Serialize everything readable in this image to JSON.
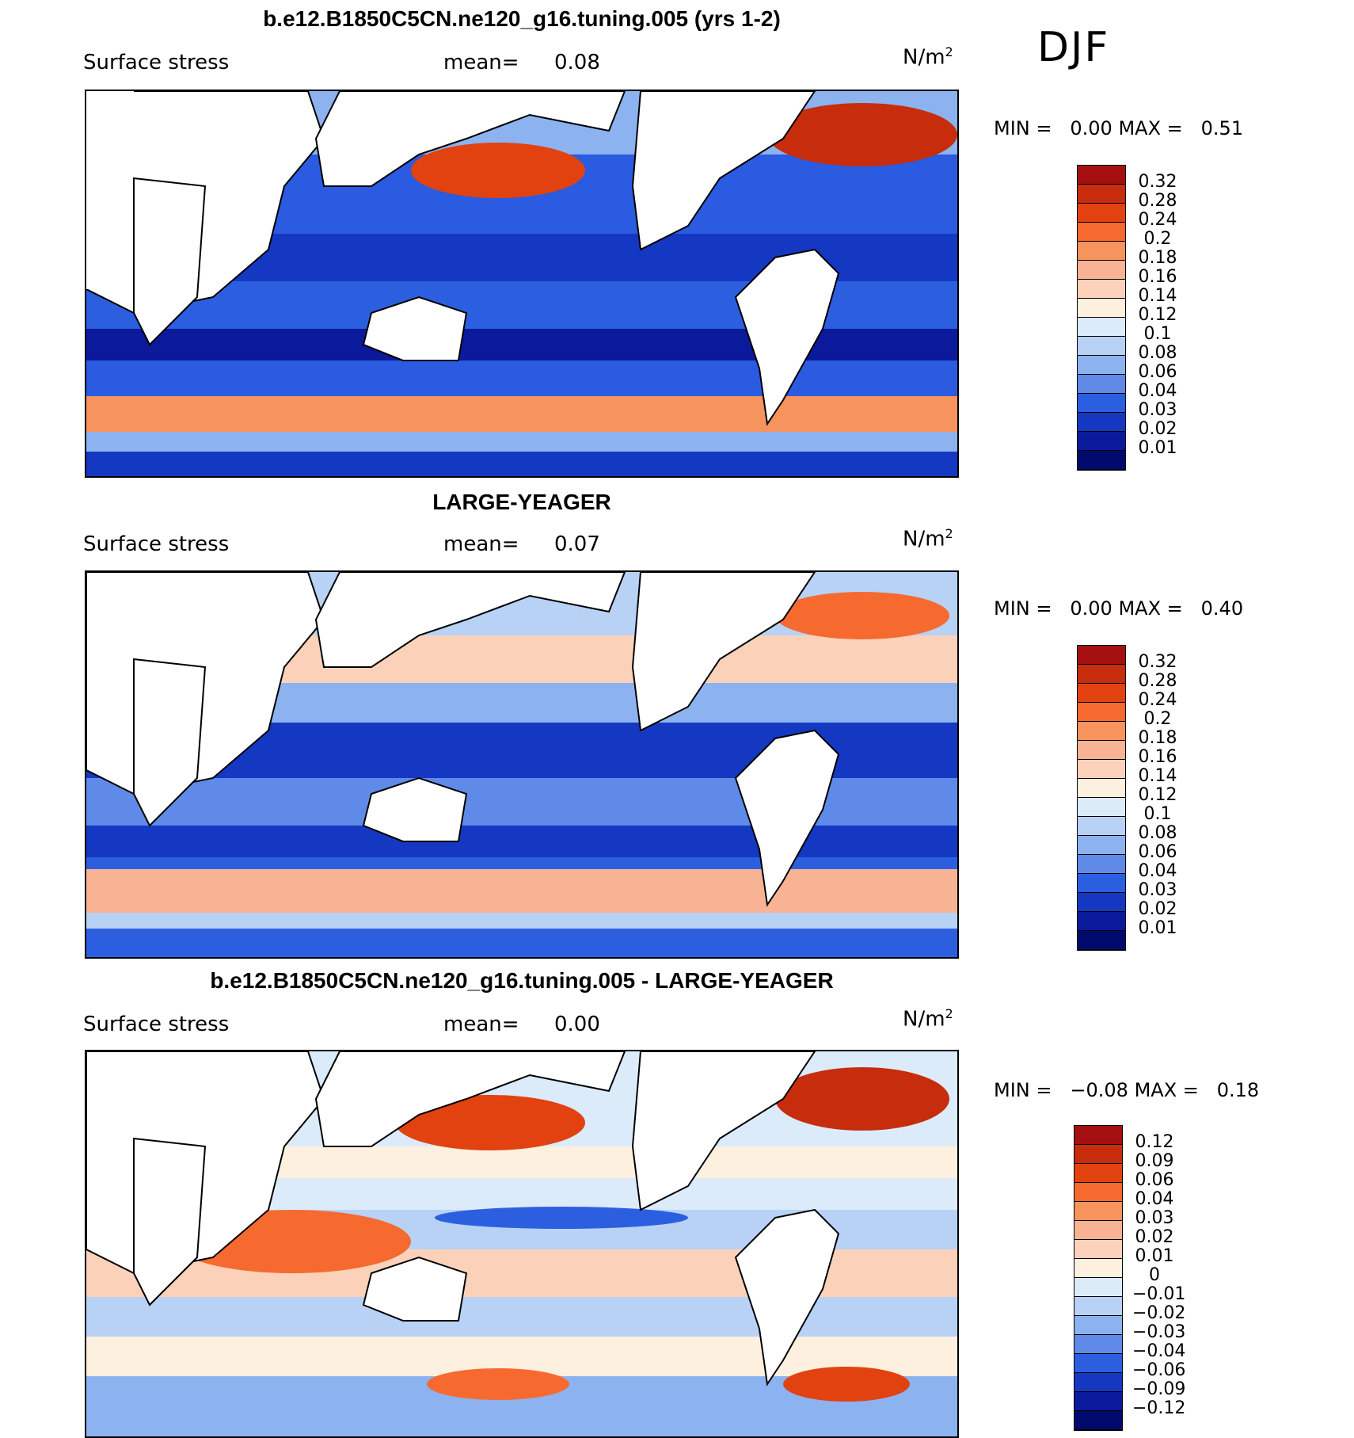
{
  "season": "DJF",
  "panels": [
    {
      "title": "b.e12.B1850C5CN.ne120_g16.tuning.005 (yrs 1-2)",
      "variable": "Surface stress",
      "mean_label": "mean=",
      "mean_value": "0.08",
      "units": "N/m",
      "units_exp": "2",
      "min_label": "MIN =",
      "min_value": "0.00",
      "max_label": "MAX =",
      "max_value": "0.51",
      "colorbar_labels": [
        "0.32",
        "0.28",
        "0.24",
        "0.2",
        "0.18",
        "0.16",
        "0.14",
        "0.12",
        "0.1",
        "0.08",
        "0.06",
        "0.04",
        "0.03",
        "0.02",
        "0.01"
      ],
      "colorbar_colors": [
        "#a50f0f",
        "#c72c0c",
        "#e2420f",
        "#f66a30",
        "#f7935c",
        "#f8b394",
        "#fbd2b9",
        "#fdf0df",
        "#dcebfa",
        "#b8d2f5",
        "#8cb3ef",
        "#5f8ae8",
        "#2c5fe0",
        "#1538c2",
        "#0a1a9a",
        "#000a6e"
      ]
    },
    {
      "title": "LARGE-YEAGER",
      "variable": "Surface stress",
      "mean_label": "mean=",
      "mean_value": "0.07",
      "units": "N/m",
      "units_exp": "2",
      "min_label": "MIN =",
      "min_value": "0.00",
      "max_label": "MAX =",
      "max_value": "0.40",
      "colorbar_labels": [
        "0.32",
        "0.28",
        "0.24",
        "0.2",
        "0.18",
        "0.16",
        "0.14",
        "0.12",
        "0.1",
        "0.08",
        "0.06",
        "0.04",
        "0.03",
        "0.02",
        "0.01"
      ],
      "colorbar_colors": [
        "#a50f0f",
        "#c72c0c",
        "#e2420f",
        "#f66a30",
        "#f7935c",
        "#f8b394",
        "#fbd2b9",
        "#fdf0df",
        "#dcebfa",
        "#b8d2f5",
        "#8cb3ef",
        "#5f8ae8",
        "#2c5fe0",
        "#1538c2",
        "#0a1a9a",
        "#000a6e"
      ]
    },
    {
      "title": "b.e12.B1850C5CN.ne120_g16.tuning.005 - LARGE-YEAGER",
      "variable": "Surface stress",
      "mean_label": "mean=",
      "mean_value": "0.00",
      "units": "N/m",
      "units_exp": "2",
      "min_label": "MIN =",
      "min_value": "−0.08",
      "max_label": "MAX =",
      "max_value": "0.18",
      "colorbar_labels": [
        "0.12",
        "0.09",
        "0.06",
        "0.04",
        "0.03",
        "0.02",
        "0.01",
        "0",
        "−0.01",
        "−0.02",
        "−0.03",
        "−0.04",
        "−0.06",
        "−0.09",
        "−0.12"
      ],
      "colorbar_colors": [
        "#a50f0f",
        "#c72c0c",
        "#e2420f",
        "#f66a30",
        "#f7935c",
        "#f8b394",
        "#fbd2b9",
        "#fdf0df",
        "#dcebfa",
        "#b8d2f5",
        "#8cb3ef",
        "#5f8ae8",
        "#2c5fe0",
        "#1538c2",
        "#0a1a9a",
        "#000a6e"
      ]
    }
  ]
}
